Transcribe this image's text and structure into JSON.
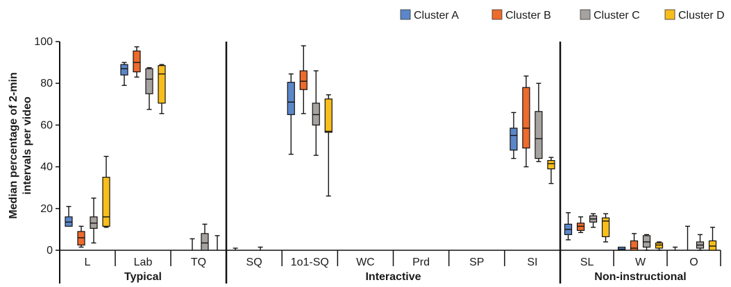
{
  "chart_data": {
    "type": "boxplot",
    "ylabel": "Median percentage of 2-min intervals per video",
    "ylabel_lines": [
      "Median percentage of 2-min",
      "intervals per video"
    ],
    "ylim": [
      0,
      100
    ],
    "yticks": [
      0,
      20,
      40,
      60,
      80,
      100
    ],
    "legend_position": "top-right",
    "series": [
      {
        "name": "Cluster A",
        "color": "#5b87c9"
      },
      {
        "name": "Cluster B",
        "color": "#ec6b2d"
      },
      {
        "name": "Cluster C",
        "color": "#a6a2a0"
      },
      {
        "name": "Cluster D",
        "color": "#f8be1c"
      }
    ],
    "groups": [
      {
        "label": "Typical",
        "categories": [
          "L",
          "Lab",
          "TQ"
        ]
      },
      {
        "label": "Interactive",
        "categories": [
          "SQ",
          "1o1-SQ",
          "WC",
          "Prd",
          "SP",
          "SI"
        ]
      },
      {
        "label": "Non-instructional",
        "categories": [
          "SL",
          "W",
          "O"
        ]
      }
    ],
    "boxes": [
      {
        "category": "L",
        "series": "Cluster A",
        "min": 11.5,
        "q1": 11.5,
        "median": 13.5,
        "q3": 16,
        "max": 21
      },
      {
        "category": "L",
        "series": "Cluster B",
        "min": 1.5,
        "q1": 2.5,
        "median": 6,
        "q3": 9,
        "max": 11.5
      },
      {
        "category": "L",
        "series": "Cluster C",
        "min": 3.5,
        "q1": 10.5,
        "median": 13,
        "q3": 16,
        "max": 25
      },
      {
        "category": "L",
        "series": "Cluster D",
        "min": 11,
        "q1": 11.5,
        "median": 16,
        "q3": 35,
        "max": 45
      },
      {
        "category": "Lab",
        "series": "Cluster A",
        "min": 79,
        "q1": 84,
        "median": 87,
        "q3": 89,
        "max": 90
      },
      {
        "category": "Lab",
        "series": "Cluster B",
        "min": 83,
        "q1": 85.5,
        "median": 90,
        "q3": 95.5,
        "max": 97.5
      },
      {
        "category": "Lab",
        "series": "Cluster C",
        "min": 67.5,
        "q1": 75,
        "median": 82,
        "q3": 87,
        "max": 87.5
      },
      {
        "category": "Lab",
        "series": "Cluster D",
        "min": 65.5,
        "q1": 70.5,
        "median": 84.5,
        "q3": 88.5,
        "max": 89
      },
      {
        "category": "TQ",
        "series": "Cluster A",
        "min": 0,
        "q1": 0,
        "median": 0,
        "q3": 0,
        "max": 0
      },
      {
        "category": "TQ",
        "series": "Cluster B",
        "min": 0,
        "q1": 0,
        "median": 0,
        "q3": 0,
        "max": 5.5
      },
      {
        "category": "TQ",
        "series": "Cluster C",
        "min": 0,
        "q1": 0,
        "median": 3.5,
        "q3": 8,
        "max": 12.5
      },
      {
        "category": "TQ",
        "series": "Cluster D",
        "min": 0,
        "q1": 0,
        "median": 0,
        "q3": 0,
        "max": 7
      },
      {
        "category": "SQ",
        "series": "Cluster A",
        "min": 0,
        "q1": 0,
        "median": 0,
        "q3": 0,
        "max": 1
      },
      {
        "category": "SQ",
        "series": "Cluster B",
        "min": 0,
        "q1": 0,
        "median": 0,
        "q3": 0,
        "max": 0
      },
      {
        "category": "SQ",
        "series": "Cluster C",
        "min": 0,
        "q1": 0,
        "median": 0,
        "q3": 0,
        "max": 1.5
      },
      {
        "category": "SQ",
        "series": "Cluster D",
        "min": 0,
        "q1": 0,
        "median": 0,
        "q3": 0,
        "max": 0
      },
      {
        "category": "1o1-SQ",
        "series": "Cluster A",
        "min": 46,
        "q1": 65,
        "median": 71,
        "q3": 80.5,
        "max": 84.5
      },
      {
        "category": "1o1-SQ",
        "series": "Cluster B",
        "min": 65.5,
        "q1": 77,
        "median": 81,
        "q3": 86,
        "max": 98
      },
      {
        "category": "1o1-SQ",
        "series": "Cluster C",
        "min": 45.5,
        "q1": 60,
        "median": 65,
        "q3": 70.5,
        "max": 86
      },
      {
        "category": "1o1-SQ",
        "series": "Cluster D",
        "min": 26,
        "q1": 56.5,
        "median": 57,
        "q3": 72.5,
        "max": 74.5
      },
      {
        "category": "SI",
        "series": "Cluster A",
        "min": 44,
        "q1": 48,
        "median": 55,
        "q3": 58.5,
        "max": 66
      },
      {
        "category": "SI",
        "series": "Cluster B",
        "min": 40,
        "q1": 49,
        "median": 58.5,
        "q3": 78,
        "max": 83.5
      },
      {
        "category": "SI",
        "series": "Cluster C",
        "min": 42.5,
        "q1": 44,
        "median": 53.5,
        "q3": 66.5,
        "max": 80
      },
      {
        "category": "SI",
        "series": "Cluster D",
        "min": 32,
        "q1": 39,
        "median": 41.5,
        "q3": 43,
        "max": 44.5
      },
      {
        "category": "SL",
        "series": "Cluster A",
        "min": 5,
        "q1": 7.5,
        "median": 10,
        "q3": 12.5,
        "max": 18
      },
      {
        "category": "SL",
        "series": "Cluster B",
        "min": 8.5,
        "q1": 9.5,
        "median": 11.5,
        "q3": 13,
        "max": 16
      },
      {
        "category": "SL",
        "series": "Cluster C",
        "min": 11,
        "q1": 13.5,
        "median": 15,
        "q3": 16.5,
        "max": 17.5
      },
      {
        "category": "SL",
        "series": "Cluster D",
        "min": 4,
        "q1": 6.5,
        "median": 14,
        "q3": 15.5,
        "max": 17.5
      },
      {
        "category": "W",
        "series": "Cluster A",
        "min": 0,
        "q1": 0,
        "median": 0.5,
        "q3": 1.5,
        "max": 1.5
      },
      {
        "category": "W",
        "series": "Cluster B",
        "min": 0,
        "q1": 0,
        "median": 1,
        "q3": 4.5,
        "max": 8
      },
      {
        "category": "W",
        "series": "Cluster C",
        "min": 0,
        "q1": 1.5,
        "median": 4,
        "q3": 7,
        "max": 7.5
      },
      {
        "category": "W",
        "series": "Cluster D",
        "min": 0,
        "q1": 1,
        "median": 2.5,
        "q3": 3.5,
        "max": 4
      },
      {
        "category": "O",
        "series": "Cluster A",
        "min": 0,
        "q1": 0,
        "median": 0,
        "q3": 0,
        "max": 1.5
      },
      {
        "category": "O",
        "series": "Cluster B",
        "min": 0,
        "q1": 0,
        "median": 0,
        "q3": 0,
        "max": 11.5
      },
      {
        "category": "O",
        "series": "Cluster C",
        "min": 0,
        "q1": 1,
        "median": 2.5,
        "q3": 4,
        "max": 7.5
      },
      {
        "category": "O",
        "series": "Cluster D",
        "min": 0,
        "q1": 0,
        "median": 2,
        "q3": 4.5,
        "max": 11
      }
    ]
  }
}
